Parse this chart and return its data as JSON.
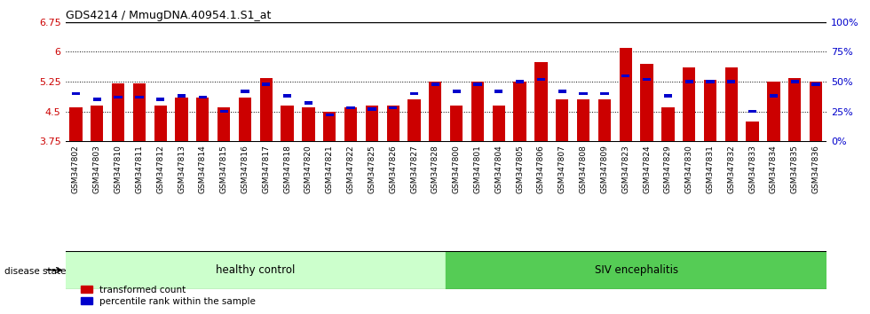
{
  "title": "GDS4214 / MmugDNA.40954.1.S1_at",
  "samples": [
    "GSM347802",
    "GSM347803",
    "GSM347810",
    "GSM347811",
    "GSM347812",
    "GSM347813",
    "GSM347814",
    "GSM347815",
    "GSM347816",
    "GSM347817",
    "GSM347818",
    "GSM347820",
    "GSM347821",
    "GSM347822",
    "GSM347825",
    "GSM347826",
    "GSM347827",
    "GSM347828",
    "GSM347800",
    "GSM347801",
    "GSM347804",
    "GSM347805",
    "GSM347806",
    "GSM347807",
    "GSM347808",
    "GSM347809",
    "GSM347823",
    "GSM347824",
    "GSM347829",
    "GSM347830",
    "GSM347831",
    "GSM347832",
    "GSM347833",
    "GSM347834",
    "GSM347835",
    "GSM347836"
  ],
  "red_values": [
    4.6,
    4.65,
    5.2,
    5.2,
    4.65,
    4.85,
    4.85,
    4.6,
    4.85,
    5.35,
    4.65,
    4.6,
    4.5,
    4.6,
    4.65,
    4.65,
    4.8,
    5.25,
    4.65,
    5.25,
    4.65,
    5.25,
    5.75,
    4.8,
    4.8,
    4.8,
    6.1,
    5.7,
    4.6,
    5.6,
    5.3,
    5.6,
    4.25,
    5.25,
    5.35,
    5.25
  ],
  "blue_values": [
    40,
    35,
    37,
    37,
    35,
    38,
    37,
    25,
    42,
    48,
    38,
    32,
    22,
    28,
    27,
    28,
    40,
    48,
    42,
    48,
    42,
    50,
    52,
    42,
    40,
    40,
    55,
    52,
    38,
    50,
    50,
    50,
    25,
    38,
    50,
    48
  ],
  "healthy_count": 18,
  "ymin": 3.75,
  "ymax": 6.75,
  "yticks_left": [
    3.75,
    4.5,
    5.25,
    6.0,
    6.75
  ],
  "ytick_labels_left": [
    "3.75",
    "4.5",
    "5.25",
    "6",
    "6.75"
  ],
  "yticks_right": [
    0,
    25,
    50,
    75,
    100
  ],
  "ytick_labels_right": [
    "0%",
    "25%",
    "50%",
    "75%",
    "100%"
  ],
  "hlines": [
    4.5,
    5.25,
    6.0
  ],
  "red_color": "#cc0000",
  "blue_color": "#0000cc",
  "bar_width": 0.6,
  "healthy_bg": "#ccffcc",
  "siv_bg": "#55cc55",
  "healthy_label": "healthy control",
  "siv_label": "SIV encephalitis",
  "disease_state_label": "disease state",
  "legend_red": "transformed count",
  "legend_blue": "percentile rank within the sample"
}
